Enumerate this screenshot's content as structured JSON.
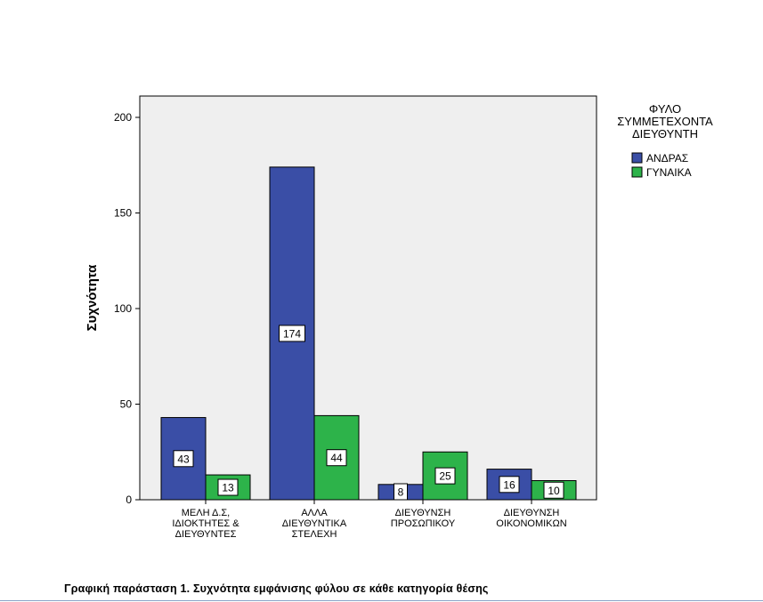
{
  "chart_data": {
    "type": "bar",
    "ylabel": "Συχνότητα",
    "xlabel": "",
    "ylim": [
      0,
      210
    ],
    "yticks": [
      0,
      50,
      100,
      150,
      200
    ],
    "grid": false,
    "legend_position": "right",
    "legend_title_lines": [
      "ΦΥΛΟ",
      "ΣΥΜΜΕΤΕΧΟΝΤΑ",
      "ΔΙΕΥΘΥΝΤΗ"
    ],
    "categories": [
      [
        "ΜΕΛΗ Δ.Σ,",
        "ΙΔΙΟΚΤΗΤΕΣ &",
        "ΔΙΕΥΘΥΝΤΕΣ"
      ],
      [
        "ΑΛΛΑ",
        "ΔΙΕΥΘΥΝΤΙΚΑ",
        "ΣΤΕΛΕΧΗ"
      ],
      [
        "ΔΙΕΥΘΥΝΣΗ",
        "ΠΡΟΣΩΠΙΚΟΥ"
      ],
      [
        "ΔΙΕΥΘΥΝΣΗ",
        "ΟΙΚΟΝΟΜΙΚΩΝ"
      ]
    ],
    "series": [
      {
        "name": "ΑΝΔΡΑΣ",
        "color": "#3a4ea6",
        "values": [
          43,
          174,
          8,
          16
        ]
      },
      {
        "name": "ΓΥΝΑΙΚΑ",
        "color": "#2db34a",
        "values": [
          13,
          44,
          25,
          10
        ]
      }
    ],
    "plot_background": "#efefef"
  },
  "caption": "Γραφική παράσταση 1.  Συχνότητα εμφάνισης φύλου σε κάθε κατηγορία θέσης"
}
